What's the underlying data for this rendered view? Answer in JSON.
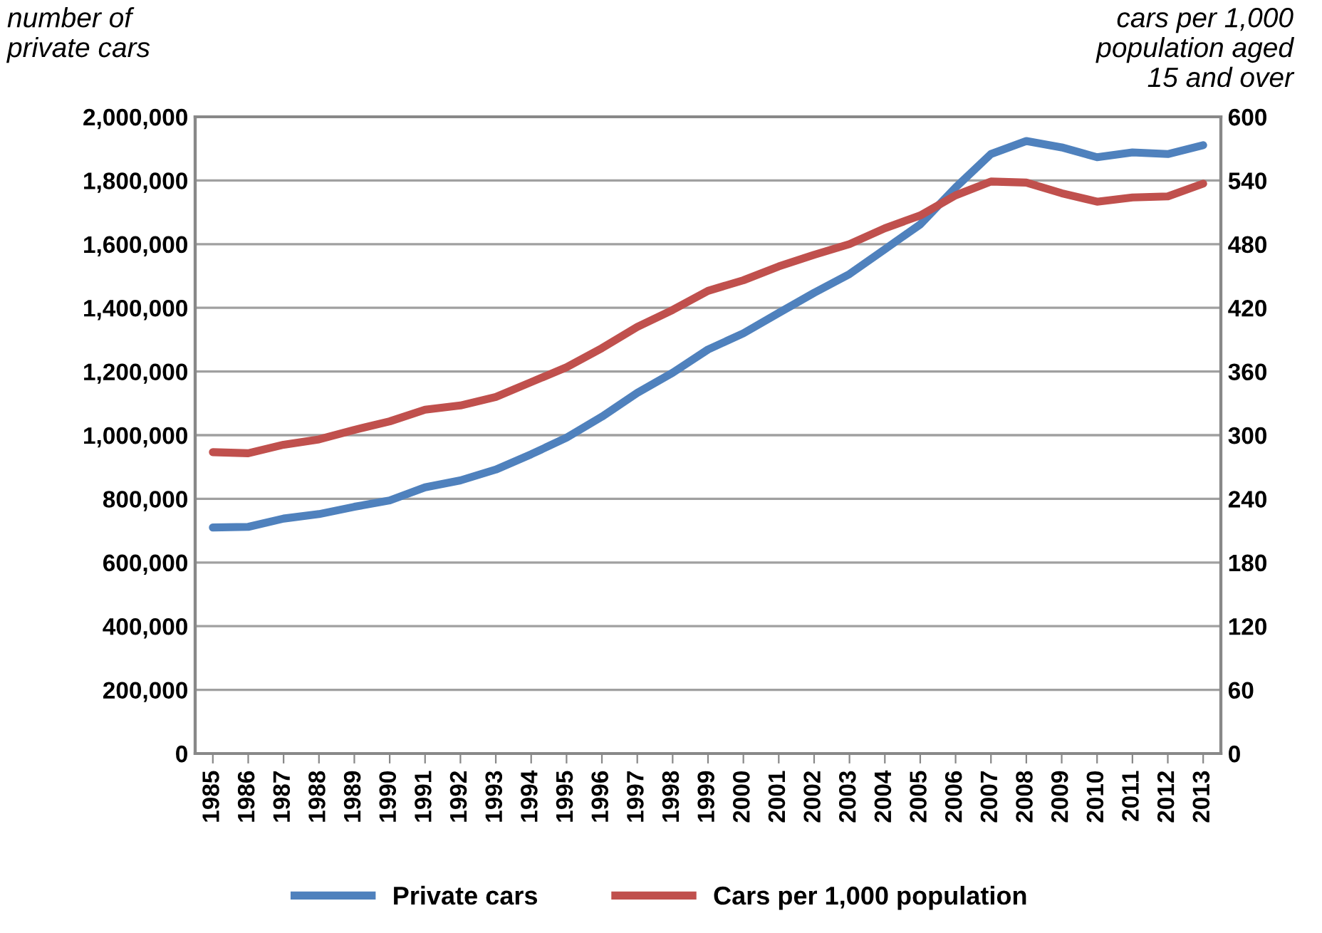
{
  "chart_data": {
    "type": "line",
    "ylabel": "number of\nprivate cars",
    "y2label": "cars per 1,000\npopulation aged\n15 and over",
    "categories": [
      "1985",
      "1986",
      "1987",
      "1988",
      "1989",
      "1990",
      "1991",
      "1992",
      "1993",
      "1994",
      "1995",
      "1996",
      "1997",
      "1998",
      "1999",
      "2000",
      "2001",
      "2002",
      "2003",
      "2004",
      "2005",
      "2006",
      "2007",
      "2008",
      "2009",
      "2010",
      "2011",
      "2012",
      "2013"
    ],
    "series": [
      {
        "name": "Private cars",
        "color": "#4f81bd",
        "values": [
          710000,
          712000,
          738000,
          752000,
          775000,
          795000,
          836000,
          858000,
          892000,
          940000,
          992000,
          1058000,
          1133000,
          1196000,
          1269000,
          1320000,
          1384000,
          1447000,
          1506000,
          1584000,
          1662000,
          1778000,
          1883000,
          1924000,
          1904000,
          1873000,
          1888000,
          1883000,
          1911000
        ]
      },
      {
        "name": "Cars per 1,000 population",
        "color": "#c0504d",
        "axis": "y2",
        "values": [
          284,
          283,
          291,
          296,
          305,
          313,
          324,
          328,
          336,
          350,
          364,
          382,
          402,
          418,
          436,
          446,
          459,
          470,
          480,
          495,
          507,
          526,
          539,
          538,
          528,
          520,
          524,
          525,
          537
        ]
      }
    ],
    "ylim": [
      0,
      2000000
    ],
    "yticks": [
      {
        "value": 0,
        "label": "0"
      },
      {
        "value": 200000,
        "label": "200,000"
      },
      {
        "value": 400000,
        "label": "400,000"
      },
      {
        "value": 600000,
        "label": "600,000"
      },
      {
        "value": 800000,
        "label": "800,000"
      },
      {
        "value": 1000000,
        "label": "1,000,000"
      },
      {
        "value": 1200000,
        "label": "1,200,000"
      },
      {
        "value": 1400000,
        "label": "1,400,000"
      },
      {
        "value": 1600000,
        "label": "1,600,000"
      },
      {
        "value": 1800000,
        "label": "1,800,000"
      },
      {
        "value": 2000000,
        "label": "2,000,000"
      }
    ],
    "y2lim": [
      0,
      600
    ],
    "y2ticks": [
      0,
      60,
      120,
      180,
      240,
      300,
      360,
      420,
      480,
      540,
      600
    ],
    "grid": "y",
    "legend": "bottom",
    "marker": "none",
    "line_style": "solid"
  }
}
